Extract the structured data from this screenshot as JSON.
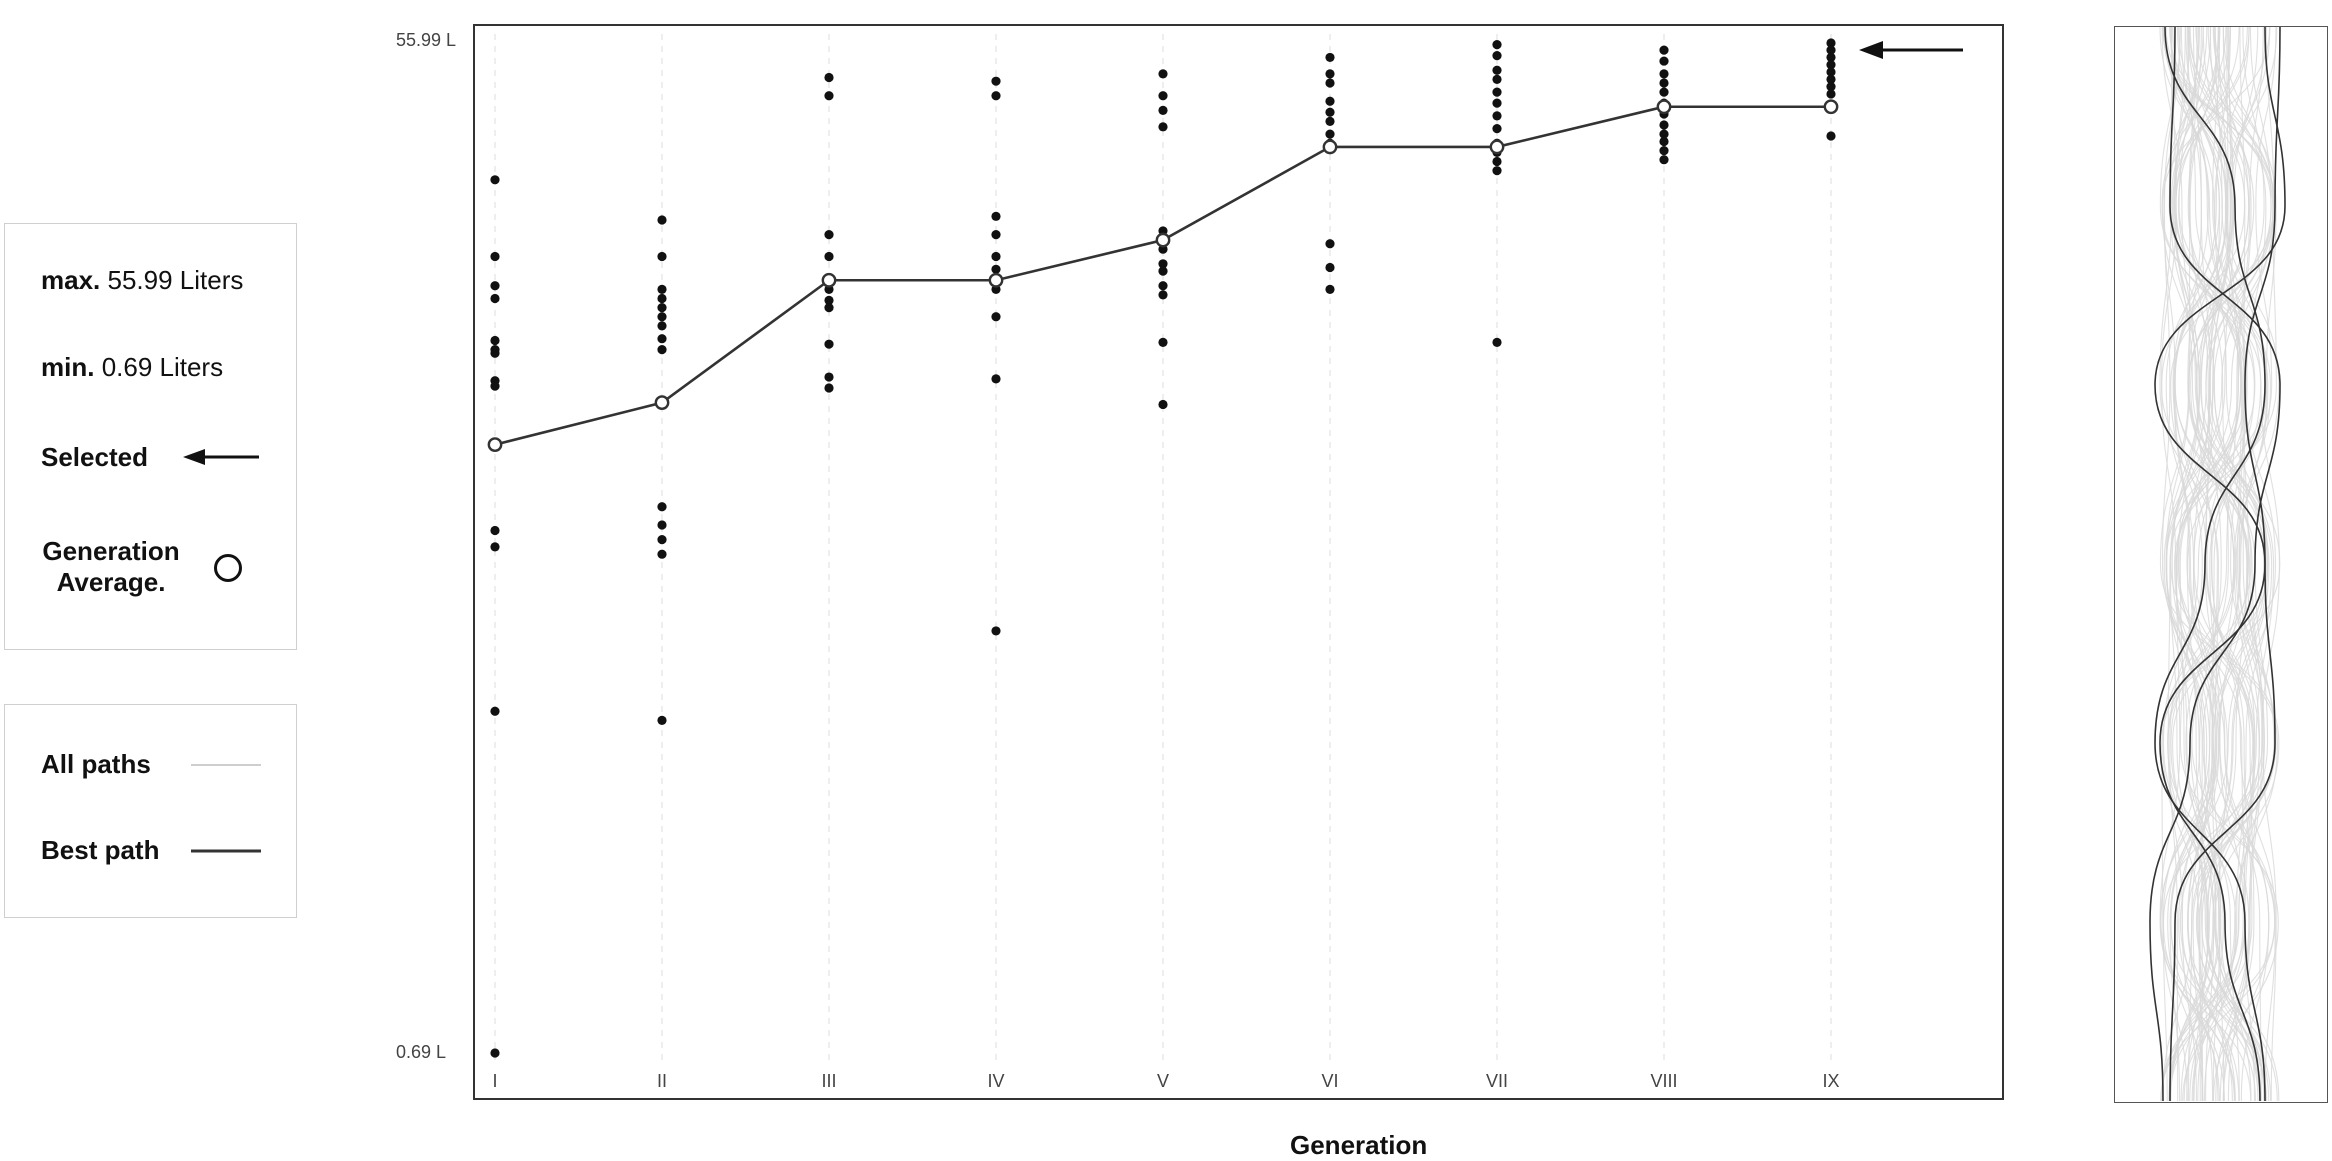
{
  "legend": {
    "max_label": "max.",
    "max_value": "55.99 Liters",
    "min_label": "min.",
    "min_value": "0.69 Liters",
    "selected_label": "Selected",
    "gen_avg_label": "Generation Average.",
    "all_paths_label": "All paths",
    "best_path_label": "Best path"
  },
  "colors": {
    "dot": "#111111",
    "line": "#333333",
    "grid": "#dcdcdc",
    "all_paths": "#d8d8d8",
    "best_path": "#333333"
  },
  "chart_data": {
    "type": "scatter",
    "xlabel": "Generation",
    "ylabel": "",
    "categories": [
      "I",
      "II",
      "III",
      "IV",
      "V",
      "VI",
      "VII",
      "VIII",
      "IX"
    ],
    "ylim": [
      0.69,
      55.99
    ],
    "ytick_labels": [
      "55.99 L",
      "0.69 L"
    ],
    "series": [
      {
        "values": [
          [
            48.5,
            44.3,
            42.7,
            42.0,
            39.7,
            39.2,
            39.0,
            37.5,
            37.2,
            29.3,
            28.4,
            19.4,
            0.69
          ],
          [
            46.3,
            44.3,
            42.5,
            42.0,
            41.5,
            41.0,
            40.5,
            39.8,
            39.2,
            30.6,
            29.6,
            28.8,
            28.0,
            18.9
          ],
          [
            54.1,
            53.1,
            45.5,
            44.3,
            42.5,
            41.9,
            41.5,
            39.5,
            37.7,
            37.1
          ],
          [
            53.9,
            53.1,
            46.5,
            45.5,
            44.3,
            43.6,
            42.5,
            41.0,
            37.6,
            23.8
          ],
          [
            54.3,
            53.1,
            52.3,
            51.4,
            45.7,
            44.7,
            43.9,
            43.5,
            42.7,
            42.2,
            39.6,
            36.2
          ],
          [
            55.2,
            54.3,
            53.8,
            52.8,
            52.2,
            51.7,
            51.0,
            50.5,
            45.0,
            43.7,
            42.5
          ],
          [
            55.9,
            55.3,
            54.5,
            54.0,
            53.3,
            52.7,
            52.0,
            51.3,
            50.5,
            50.0,
            49.5,
            49.0,
            39.6
          ],
          [
            55.6,
            55.0,
            54.3,
            53.8,
            53.3,
            52.7,
            52.1,
            51.5,
            51.0,
            50.6,
            50.1,
            49.6
          ],
          [
            55.99,
            55.6,
            55.2,
            54.8,
            54.4,
            54.0,
            53.6,
            53.2,
            50.9
          ]
        ]
      },
      {
        "name": "Generation Average.",
        "values": [
          34.0,
          36.3,
          43.0,
          43.0,
          45.2,
          50.3,
          50.3,
          52.5,
          52.5
        ]
      }
    ],
    "selected": {
      "category": "IX",
      "value": 55.99
    },
    "grid": true
  }
}
